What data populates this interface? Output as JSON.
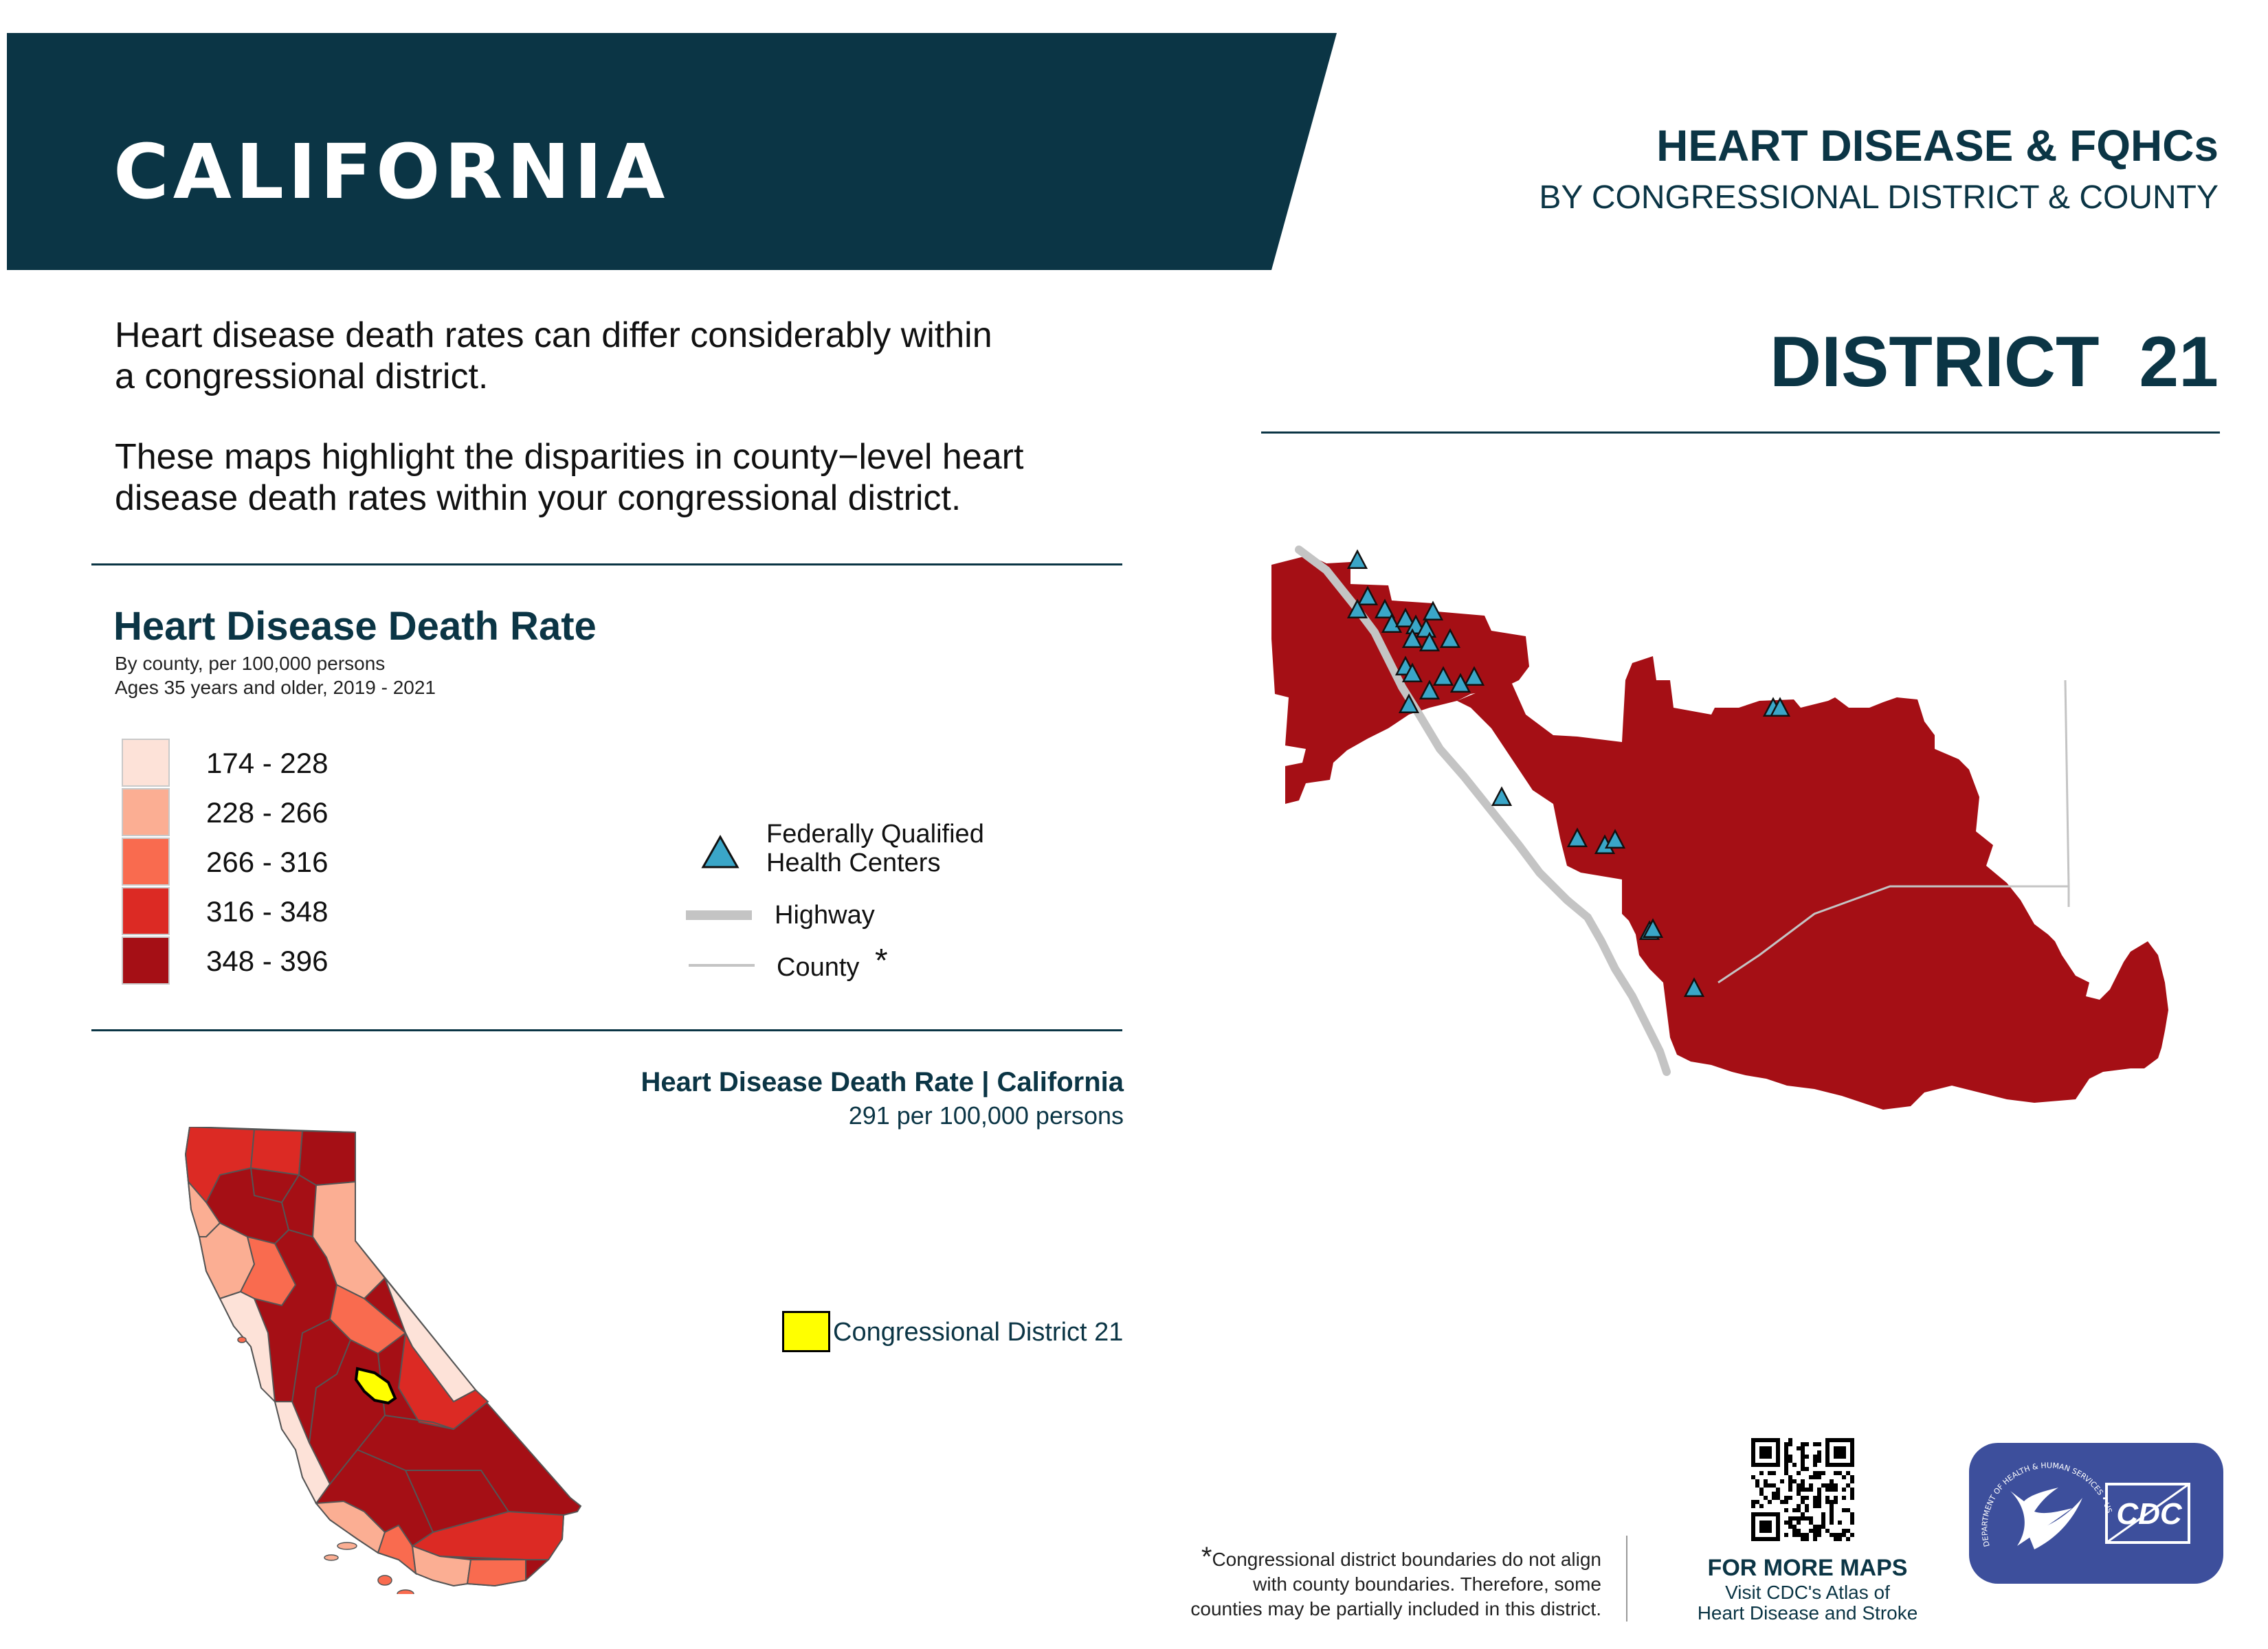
{
  "header": {
    "state": "CALIFORNIA",
    "title": "HEART DISEASE & FQHCs",
    "subtitle": "BY CONGRESSIONAL DISTRICT & COUNTY",
    "district": "DISTRICT  21"
  },
  "intro": {
    "paragraph1": "Heart disease death rates can differ considerably within a congressional district.",
    "paragraph2": "These maps highlight the disparities in county−level heart disease death rates within your congressional district."
  },
  "legend": {
    "heading": "Heart Disease Death Rate",
    "note1": "By county, per 100,000 persons",
    "note2": "Ages 35 years and older, 2019 - 2021",
    "classes": [
      {
        "label": "174 - 228",
        "color": "#fde2d8"
      },
      {
        "label": "228 - 266",
        "color": "#fbae93"
      },
      {
        "label": "266 - 316",
        "color": "#f96b4f"
      },
      {
        "label": "316 - 348",
        "color": "#dc2a24"
      },
      {
        "label": "348 - 396",
        "color": "#a50f15"
      }
    ],
    "fqhc_label_line1": "Federally Qualified",
    "fqhc_label_line2": "Health Centers",
    "highway_label": "Highway",
    "county_label": "County",
    "county_asterisk": "*",
    "fqhc_color": "#3aa6c8",
    "highway_color": "#c4c4c4"
  },
  "state_stat": {
    "title": "Heart Disease Death Rate | California",
    "value": "291 per 100,000 persons"
  },
  "inset": {
    "district_label": "Congressional District 21",
    "highlight_color": "#ffff00"
  },
  "footer": {
    "footnote_star": "*",
    "footnote_line1": "Congressional district boundaries do not align",
    "footnote_line2": "with county boundaries. Therefore, some",
    "footnote_line3": "counties may be partially included in this district.",
    "more_title": "FOR MORE MAPS",
    "more_line1": "Visit CDC's Atlas of",
    "more_line2": "Heart Disease and Stroke",
    "cdc_text": "CDC",
    "hhs_text": "DEPARTMENT OF HEALTH & HUMAN SERVICES • USA"
  },
  "colors": {
    "navy": "#0b3545",
    "district_fill": "#a50f15",
    "logo_blue": "#3d4f9c"
  }
}
